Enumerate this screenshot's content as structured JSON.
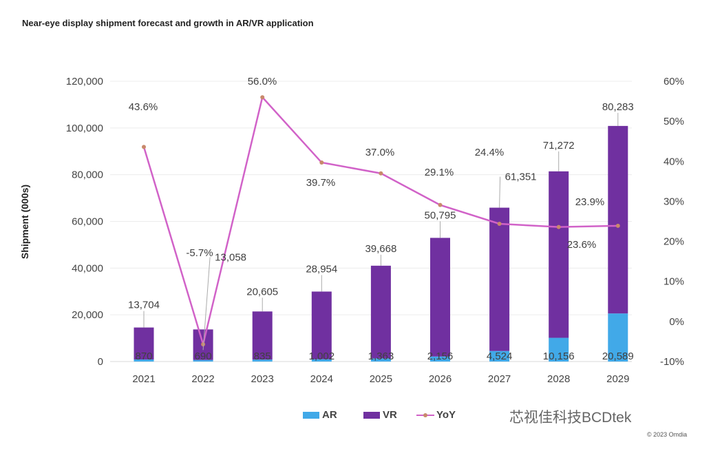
{
  "chart_data": {
    "type": "bar",
    "title": "Near-eye display shipment forecast and growth in AR/VR application",
    "ylabel": "Shipment (000s)",
    "categories": [
      "2021",
      "2022",
      "2023",
      "2024",
      "2025",
      "2026",
      "2027",
      "2028",
      "2029"
    ],
    "stacked": true,
    "series": [
      {
        "name": "AR",
        "type": "bar",
        "color": "#41A9E8",
        "values": [
          870,
          690,
          835,
          1002,
          1363,
          2156,
          4524,
          10156,
          20589
        ],
        "labels": [
          "870",
          "690",
          "835",
          "1,002",
          "1,363",
          "2,156",
          "4,524",
          "10,156",
          "20,589"
        ]
      },
      {
        "name": "VR",
        "type": "bar",
        "color": "#7030A0",
        "values": [
          13704,
          13058,
          20605,
          28954,
          39668,
          50795,
          61351,
          71272,
          80283
        ],
        "labels": [
          "13,704",
          "13,058",
          "20,605",
          "28,954",
          "39,668",
          "50,795",
          "61,351",
          "71,272",
          "80,283"
        ]
      },
      {
        "name": "YoY",
        "type": "line",
        "axis": "right",
        "color": "#D162C8",
        "marker_color": "#C8896B",
        "values": [
          43.6,
          -5.7,
          56.0,
          39.7,
          37.0,
          29.1,
          24.4,
          23.6,
          23.9
        ],
        "labels": [
          "43.6%",
          "-5.7%",
          "56.0%",
          "39.7%",
          "37.0%",
          "29.1%",
          "24.4%",
          "23.6%",
          "23.9%"
        ]
      }
    ],
    "ylim": [
      0,
      120000
    ],
    "yticks": [
      "0",
      "20,000",
      "40,000",
      "60,000",
      "80,000",
      "100,000",
      "120,000"
    ],
    "y2lim": [
      -10,
      60
    ],
    "y2ticks": [
      "-10%",
      "0%",
      "10%",
      "20%",
      "30%",
      "40%",
      "50%",
      "60%"
    ],
    "grid": true,
    "legend": "bottom"
  },
  "watermark": "芯视佳科技BCDtek",
  "copyright": "© 2023 Omdia"
}
